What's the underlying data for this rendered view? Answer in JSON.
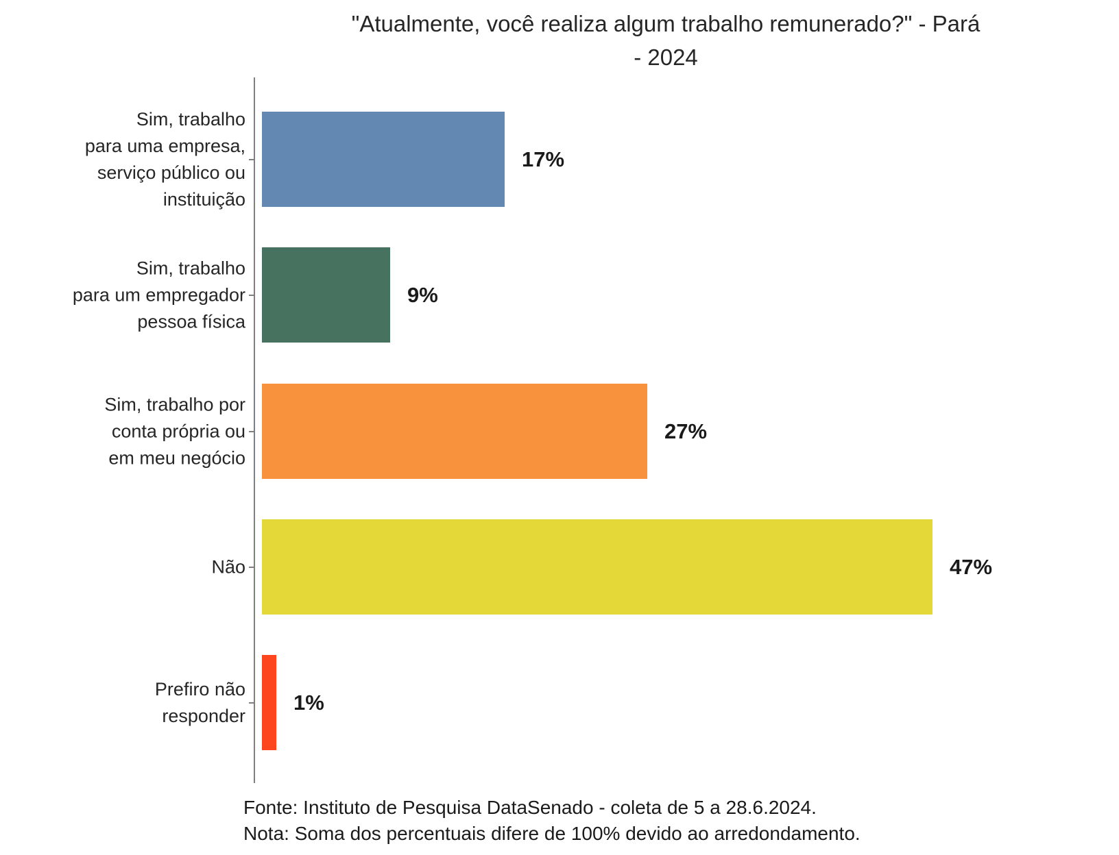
{
  "chart_data": {
    "type": "bar",
    "orientation": "horizontal",
    "title": "\"Atualmente, você realiza algum trabalho remunerado?\" - Pará - 2024",
    "title_lines": [
      "\"Atualmente, você realiza algum trabalho remunerado?\" - Pará",
      "- 2024"
    ],
    "categories": [
      "Sim, trabalho para uma empresa, serviço público ou instituição",
      "Sim, trabalho para um empregador pessoa física",
      "Sim, trabalho por conta própria ou em meu negócio",
      "Não",
      "Prefiro não responder"
    ],
    "values": [
      17,
      9,
      27,
      47,
      1
    ],
    "bars": [
      {
        "label_lines": [
          "Sim, trabalho",
          "para uma empresa,",
          "serviço público ou",
          "instituição"
        ],
        "value": 17,
        "value_label": "17%",
        "color": "#6388B1"
      },
      {
        "label_lines": [
          "Sim, trabalho",
          "para um empregador",
          "pessoa física"
        ],
        "value": 9,
        "value_label": "9%",
        "color": "#47725F"
      },
      {
        "label_lines": [
          "Sim, trabalho por",
          "conta própria ou",
          "em meu negócio"
        ],
        "value": 27,
        "value_label": "27%",
        "color": "#F8923C"
      },
      {
        "label_lines": [
          "Não"
        ],
        "value": 47,
        "value_label": "47%",
        "color": "#E3D838"
      },
      {
        "label_lines": [
          "Prefiro não",
          "responder"
        ],
        "value": 1,
        "value_label": "1%",
        "color": "#FD451E"
      }
    ],
    "xlim": [
      0,
      50
    ],
    "grid": false,
    "legend_position": "none",
    "axis_color": "#7f7f7f",
    "notes": [
      "Fonte: Instituto de Pesquisa DataSenado - coleta de 5 a 28.6.2024.",
      "Nota: Soma dos percentuais difere de 100% devido ao arredondamento."
    ]
  }
}
